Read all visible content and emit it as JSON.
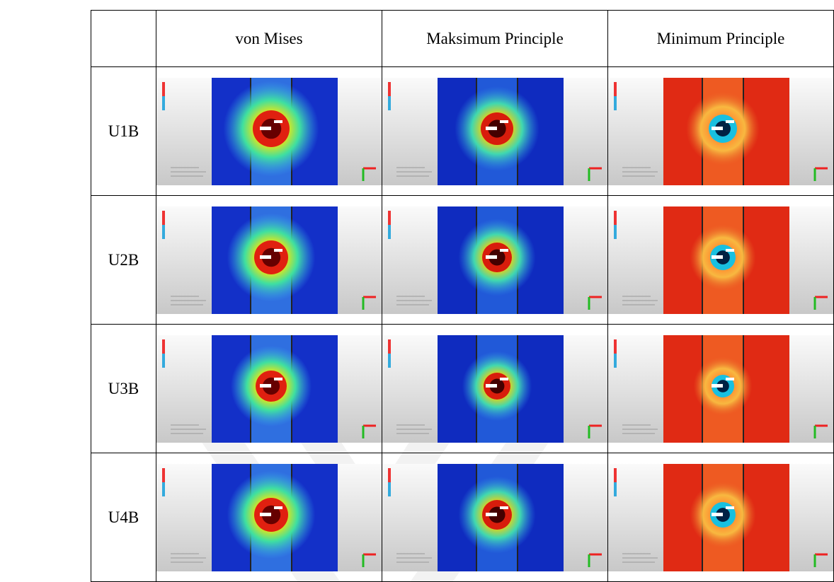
{
  "table": {
    "columns": [
      "von Mises",
      "Maksimum Principle",
      "Minimum Principle"
    ],
    "rows": [
      {
        "label": "U1B"
      },
      {
        "label": "U2B"
      },
      {
        "label": "U3B"
      },
      {
        "label": "U4B"
      }
    ]
  }
}
